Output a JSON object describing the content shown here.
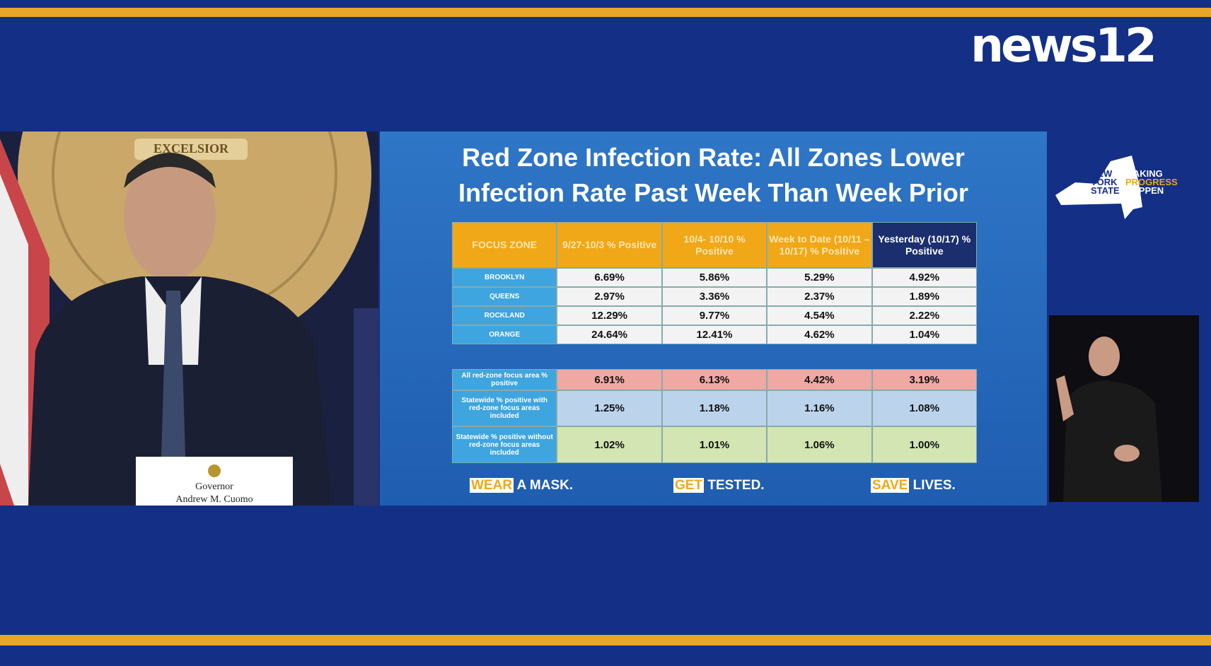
{
  "header": {
    "logo": "news12"
  },
  "video": {
    "seal_text": "EXCELSIOR",
    "nameplate": [
      "Governor",
      "Andrew M. Cuomo"
    ]
  },
  "branding": {
    "state": [
      "NEW",
      "YORK",
      "STATE"
    ],
    "slogan": [
      "MAKING",
      "PROGRESS",
      "HAPPEN"
    ]
  },
  "slide": {
    "title": [
      "Red Zone Infection Rate: All Zones Lower",
      "Infection Rate Past Week Than Week Prior"
    ],
    "table": {
      "columns": [
        "FOCUS ZONE",
        "9/27-10/3 % Positive",
        "10/4- 10/10 % Positive",
        "Week to Date (10/11 – 10/17) % Positive",
        "Yesterday (10/17) % Positive"
      ],
      "rows": [
        [
          "BROOKLYN",
          "6.69%",
          "5.86%",
          "5.29%",
          "4.92%"
        ],
        [
          "QUEENS",
          "2.97%",
          "3.36%",
          "2.37%",
          "1.89%"
        ],
        [
          "ROCKLAND",
          "12.29%",
          "9.77%",
          "4.54%",
          "2.22%"
        ],
        [
          "ORANGE",
          "24.64%",
          "12.41%",
          "4.62%",
          "1.04%"
        ]
      ]
    },
    "summary": {
      "rows": [
        [
          "All red-zone focus area % positive",
          "6.91%",
          "6.13%",
          "4.42%",
          "3.19%"
        ],
        [
          "Statewide % positive with red-zone focus areas included",
          "1.25%",
          "1.18%",
          "1.16%",
          "1.08%"
        ],
        [
          "Statewide % positive without red-zone focus areas included",
          "1.02%",
          "1.01%",
          "1.06%",
          "1.00%"
        ]
      ]
    },
    "footer": [
      {
        "highlight": "WEAR",
        "rest": "A MASK."
      },
      {
        "highlight": "GET",
        "rest": "TESTED."
      },
      {
        "highlight": "SAVE",
        "rest": "LIVES."
      }
    ]
  }
}
